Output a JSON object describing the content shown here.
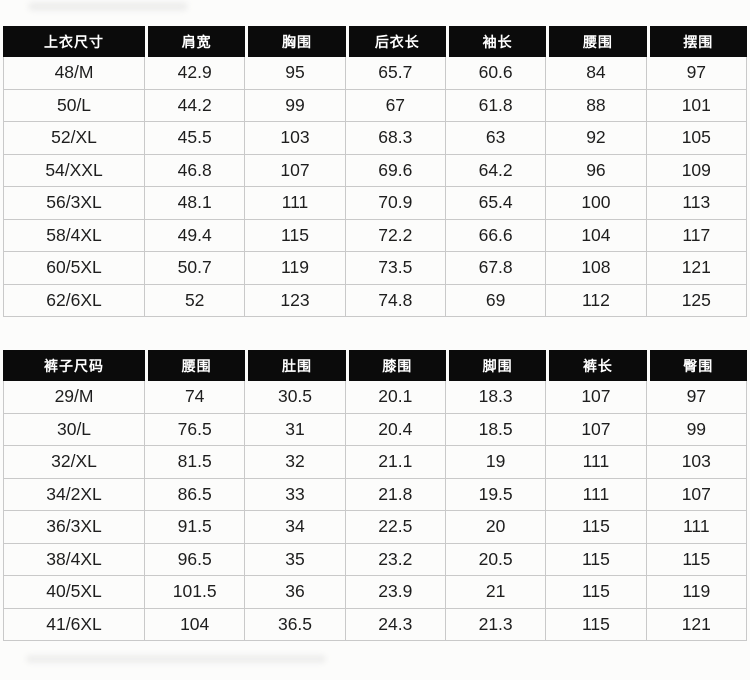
{
  "colors": {
    "page_bg": "#fcfcfb",
    "header_bg": "#0b0b0b",
    "header_text": "#ffffff",
    "body_text": "#1e1e1e",
    "grid_line": "#c9c9c9"
  },
  "tables": [
    {
      "name": "tops-size-chart",
      "headers": [
        "上衣尺寸",
        "肩宽",
        "胸围",
        "后衣长",
        "袖长",
        "腰围",
        "摆围"
      ],
      "rows": [
        [
          "48/M",
          "42.9",
          "95",
          "65.7",
          "60.6",
          "84",
          "97"
        ],
        [
          "50/L",
          "44.2",
          "99",
          "67",
          "61.8",
          "88",
          "101"
        ],
        [
          "52/XL",
          "45.5",
          "103",
          "68.3",
          "63",
          "92",
          "105"
        ],
        [
          "54/XXL",
          "46.8",
          "107",
          "69.6",
          "64.2",
          "96",
          "109"
        ],
        [
          "56/3XL",
          "48.1",
          "111",
          "70.9",
          "65.4",
          "100",
          "113"
        ],
        [
          "58/4XL",
          "49.4",
          "115",
          "72.2",
          "66.6",
          "104",
          "117"
        ],
        [
          "60/5XL",
          "50.7",
          "119",
          "73.5",
          "67.8",
          "108",
          "121"
        ],
        [
          "62/6XL",
          "52",
          "123",
          "74.8",
          "69",
          "112",
          "125"
        ]
      ]
    },
    {
      "name": "pants-size-chart",
      "headers": [
        "裤子尺码",
        "腰围",
        "肚围",
        "膝围",
        "脚围",
        "裤长",
        "臀围"
      ],
      "rows": [
        [
          "29/M",
          "74",
          "30.5",
          "20.1",
          "18.3",
          "107",
          "97"
        ],
        [
          "30/L",
          "76.5",
          "31",
          "20.4",
          "18.5",
          "107",
          "99"
        ],
        [
          "32/XL",
          "81.5",
          "32",
          "21.1",
          "19",
          "111",
          "103"
        ],
        [
          "34/2XL",
          "86.5",
          "33",
          "21.8",
          "19.5",
          "111",
          "107"
        ],
        [
          "36/3XL",
          "91.5",
          "34",
          "22.5",
          "20",
          "115",
          "111"
        ],
        [
          "38/4XL",
          "96.5",
          "35",
          "23.2",
          "20.5",
          "115",
          "115"
        ],
        [
          "40/5XL",
          "101.5",
          "36",
          "23.9",
          "21",
          "115",
          "119"
        ],
        [
          "41/6XL",
          "104",
          "36.5",
          "24.3",
          "21.3",
          "115",
          "121"
        ]
      ]
    }
  ]
}
